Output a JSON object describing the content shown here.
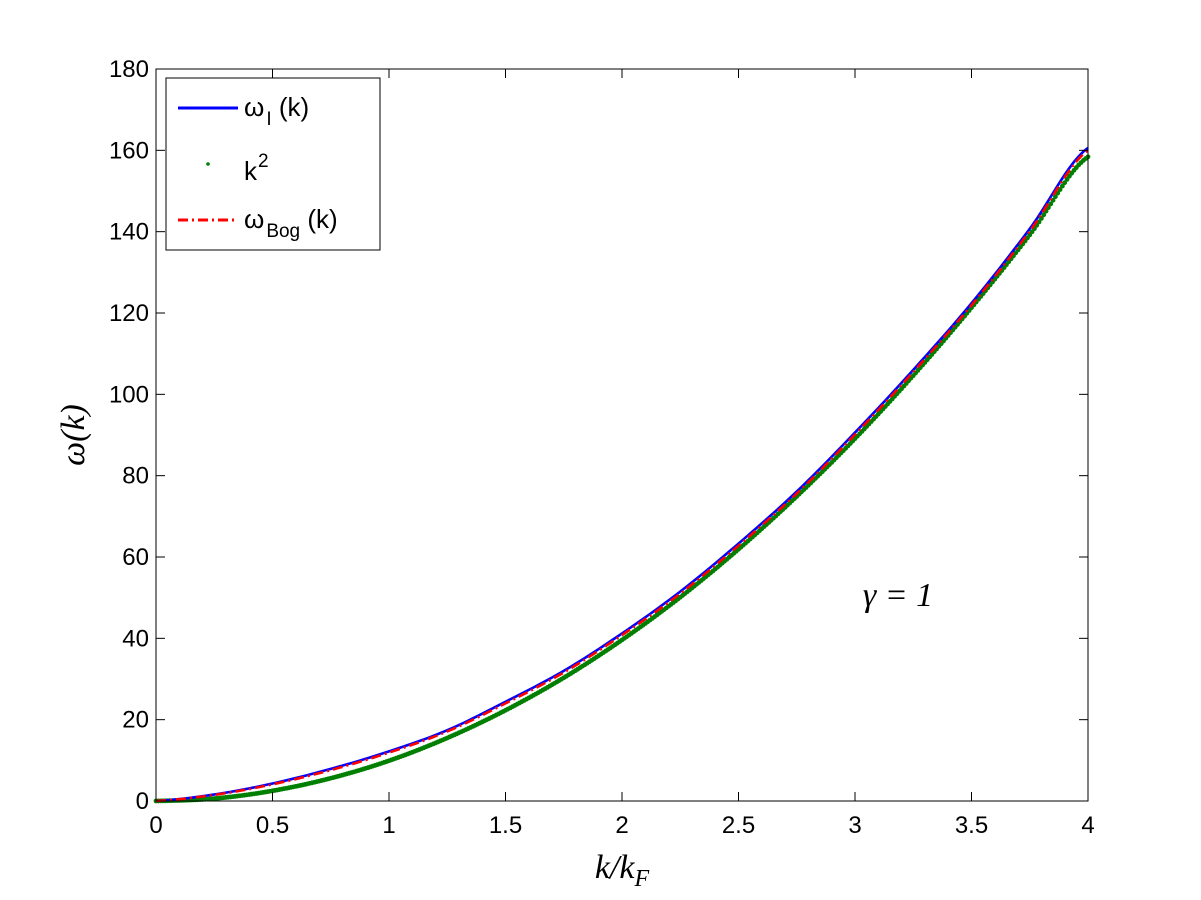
{
  "chart_data": {
    "type": "line",
    "xlabel": "k / kF",
    "ylabel": "ω(k)",
    "xlim": [
      0,
      4
    ],
    "ylim": [
      0,
      180
    ],
    "x_ticks": [
      0,
      0.5,
      1,
      1.5,
      2,
      2.5,
      3,
      3.5,
      4
    ],
    "x_tick_labels": [
      "0",
      "0.5",
      "1",
      "1.5",
      "2",
      "2.5",
      "3",
      "3.5",
      "4"
    ],
    "y_ticks": [
      0,
      20,
      40,
      60,
      80,
      100,
      120,
      140,
      160,
      180
    ],
    "y_tick_labels": [
      "0",
      "20",
      "40",
      "60",
      "80",
      "100",
      "120",
      "140",
      "160",
      "180"
    ],
    "grid": false,
    "legend_position": "top-left",
    "annotation": "γ = 1",
    "x": [
      0,
      0.25,
      0.5,
      0.75,
      1.0,
      1.25,
      1.5,
      1.75,
      2.0,
      2.25,
      2.5,
      2.75,
      3.0,
      3.25,
      3.5,
      3.75,
      4.0
    ],
    "series": [
      {
        "name": "ωI (k)",
        "legend_main": "ω",
        "legend_sub": "I",
        "legend_tail": " (k)",
        "color": "#0000ff",
        "style": "solid",
        "values": [
          0,
          1.6,
          4.3,
          7.9,
          12.2,
          17.4,
          24.4,
          32.0,
          41.2,
          51.5,
          63.3,
          76.1,
          90.6,
          106.0,
          122.4,
          140.7,
          160.6
        ]
      },
      {
        "name": "k2",
        "legend_main": "k",
        "legend_sup": "2",
        "color": "#007f00",
        "style": "dots",
        "values": [
          0,
          0.6,
          2.5,
          5.6,
          9.9,
          15.5,
          22.3,
          30.3,
          39.6,
          50.1,
          61.9,
          74.9,
          89.1,
          104.6,
          121.3,
          139.2,
          158.4
        ]
      },
      {
        "name": "ωBog (k)",
        "legend_main": "ω",
        "legend_sub": "Bog",
        "legend_tail": " (k)",
        "color": "#ff0000",
        "style": "dashdot",
        "values": [
          0,
          1.5,
          4.1,
          7.6,
          11.9,
          17.1,
          24.0,
          31.6,
          40.8,
          51.0,
          62.8,
          75.6,
          90.1,
          105.5,
          121.9,
          140.1,
          160.0
        ]
      }
    ]
  }
}
